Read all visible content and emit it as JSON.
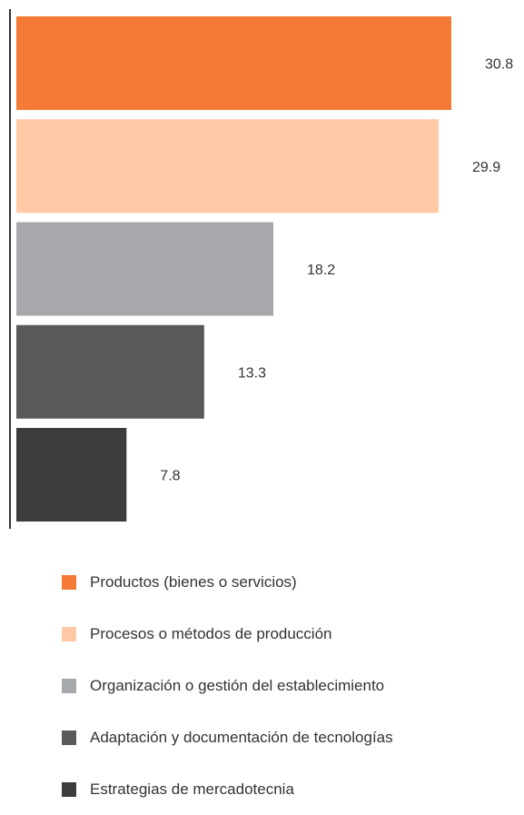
{
  "chart_data": {
    "type": "bar",
    "orientation": "horizontal",
    "categories": [
      "Productos (bienes o servicios)",
      "Procesos o métodos de producción",
      "Organización o gestión del establecimiento",
      "Adaptación y documentación de tecnologías",
      "Estrategias de mercadotecnia"
    ],
    "values": [
      30.8,
      29.9,
      18.2,
      13.3,
      7.8
    ],
    "value_labels": [
      "30.8",
      "29.9",
      "18.2",
      "13.3",
      "7.8"
    ],
    "colors": [
      "#f47b35",
      "#ffc9a6",
      "#a7a8ac",
      "#58595b",
      "#3c3c3c"
    ],
    "xlim": [
      0,
      30.8
    ],
    "grid": false,
    "legend_position": "bottom"
  },
  "legend": {
    "items": [
      {
        "label": "Productos (bienes o servicios)",
        "color": "#f47b35"
      },
      {
        "label": "Procesos o métodos de producción",
        "color": "#ffc9a6"
      },
      {
        "label": "Organización o gestión del establecimiento",
        "color": "#a7a8ac"
      },
      {
        "label": "Adaptación y documentación de tecnologías",
        "color": "#58595b"
      },
      {
        "label": "Estrategias de mercadotecnia",
        "color": "#3c3c3c"
      }
    ]
  }
}
